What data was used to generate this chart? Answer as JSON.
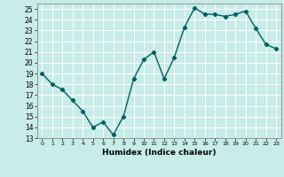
{
  "x": [
    0,
    1,
    2,
    3,
    4,
    5,
    6,
    7,
    8,
    9,
    10,
    11,
    12,
    13,
    14,
    15,
    16,
    17,
    18,
    19,
    20,
    21,
    22,
    23
  ],
  "y": [
    19,
    18,
    17.5,
    16.5,
    15.5,
    14,
    14.5,
    13.3,
    15,
    18.5,
    20.3,
    21,
    18.5,
    20.5,
    23.3,
    25.1,
    24.5,
    24.5,
    24.3,
    24.5,
    24.8,
    23.2,
    21.7,
    21.3
  ],
  "line_color": "#006060",
  "marker": "D",
  "markersize": 2.2,
  "linewidth": 1.0,
  "background_color": "#c8ece8",
  "grid_color": "#ffffff",
  "xlabel": "Humidex (Indice chaleur)",
  "xlim": [
    -0.5,
    23.5
  ],
  "ylim": [
    13,
    25.5
  ],
  "yticks": [
    13,
    14,
    15,
    16,
    17,
    18,
    19,
    20,
    21,
    22,
    23,
    24,
    25
  ],
  "xticks": [
    0,
    1,
    2,
    3,
    4,
    5,
    6,
    7,
    8,
    9,
    10,
    11,
    12,
    13,
    14,
    15,
    16,
    17,
    18,
    19,
    20,
    21,
    22,
    23
  ]
}
